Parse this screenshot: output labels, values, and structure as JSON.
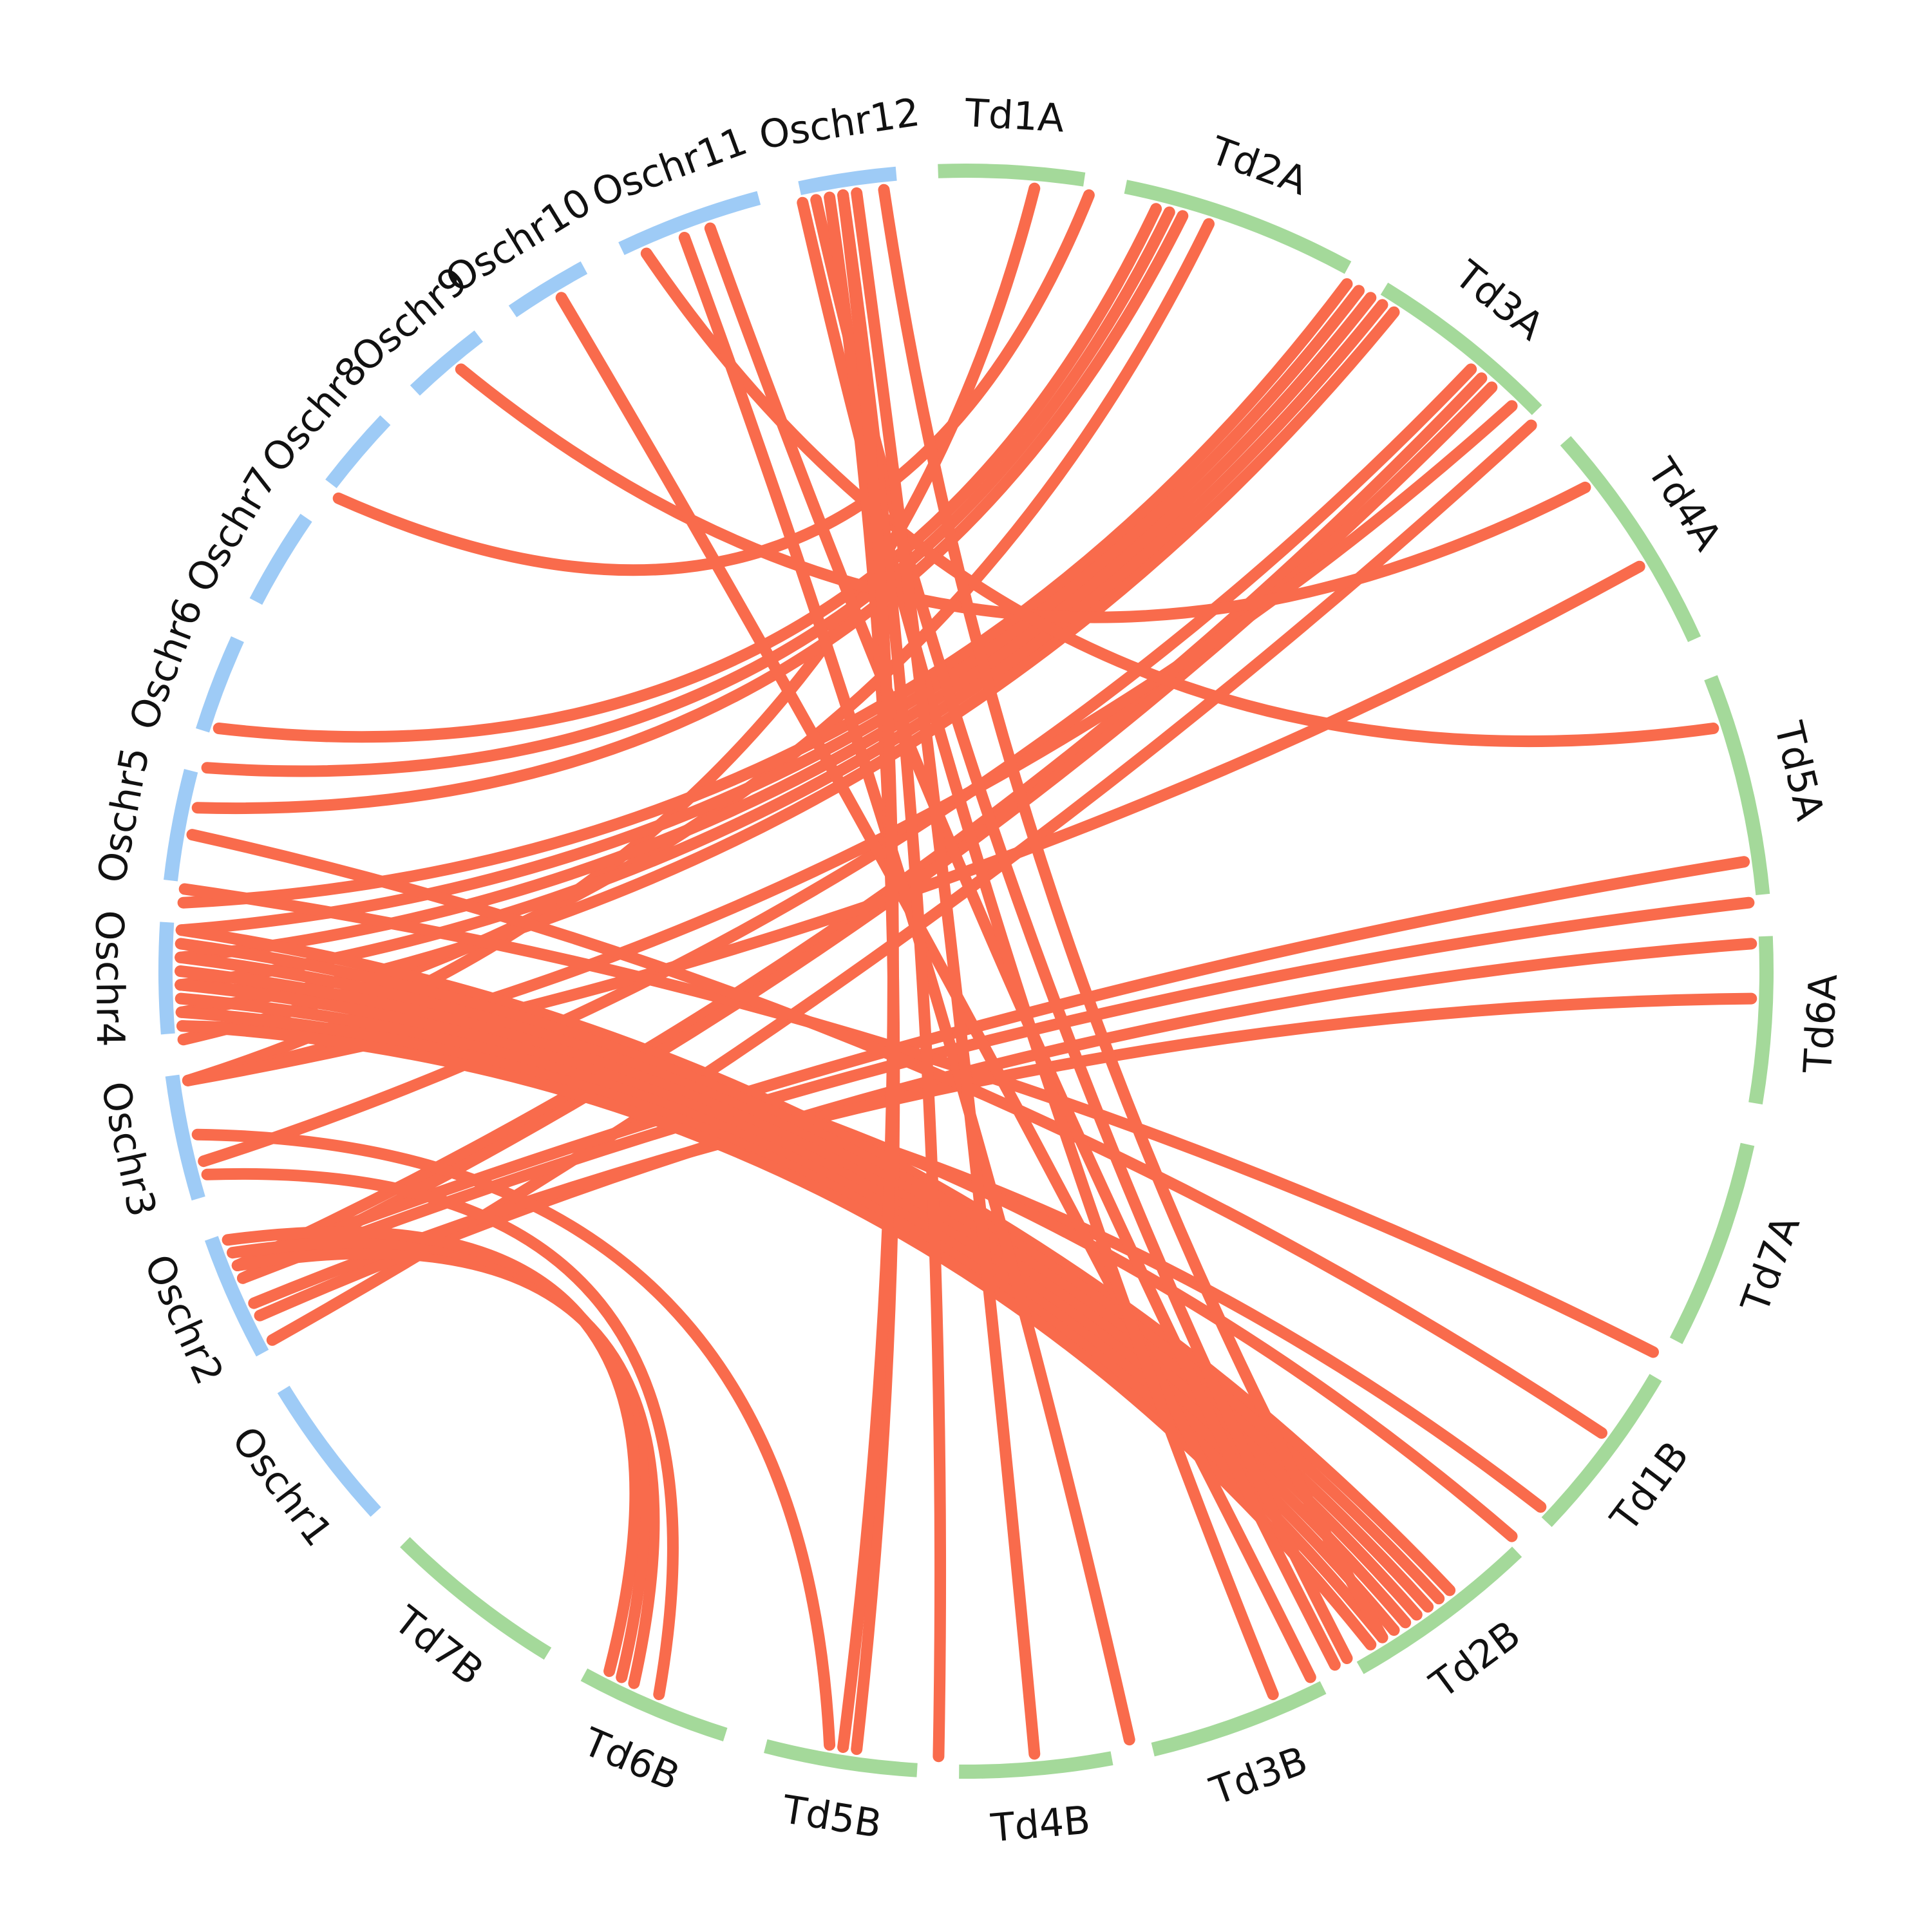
{
  "colors": {
    "rice": "#9ecbf6",
    "wheat": "#a4d99a",
    "link": "#f96b4c",
    "text": "#111111"
  },
  "chromosomes": [
    {
      "id": "Td1A",
      "label": "Td1A",
      "group": "wheat",
      "start": 358.0,
      "end": 8.5
    },
    {
      "id": "Td2A",
      "label": "Td2A",
      "group": "wheat",
      "start": 11.5,
      "end": 28.5
    },
    {
      "id": "Td3A",
      "label": "Td3A",
      "group": "wheat",
      "start": 31.5,
      "end": 45.5
    },
    {
      "id": "Td4A",
      "label": "Td4A",
      "group": "wheat",
      "start": 48.5,
      "end": 65.5
    },
    {
      "id": "Td5A",
      "label": "Td5A",
      "group": "wheat",
      "start": 68.5,
      "end": 84.5
    },
    {
      "id": "Td6A",
      "label": "Td6A",
      "group": "wheat",
      "start": 87.5,
      "end": 99.5
    },
    {
      "id": "Td7A",
      "label": "Td7A",
      "group": "wheat",
      "start": 102.5,
      "end": 117.5
    },
    {
      "id": "Td1B",
      "label": "Td1B",
      "group": "wheat",
      "start": 120.5,
      "end": 133.5
    },
    {
      "id": "Td2B",
      "label": "Td2B",
      "group": "wheat",
      "start": 136.5,
      "end": 150.5
    },
    {
      "id": "Td3B",
      "label": "Td3B",
      "group": "wheat",
      "start": 153.5,
      "end": 166.5
    },
    {
      "id": "Td4B",
      "label": "Td4B",
      "group": "wheat",
      "start": 169.5,
      "end": 180.5
    },
    {
      "id": "Td5B",
      "label": "Td5B",
      "group": "wheat",
      "start": 183.5,
      "end": 194.5
    },
    {
      "id": "Td6B",
      "label": "Td6B",
      "group": "wheat",
      "start": 197.5,
      "end": 208.5
    },
    {
      "id": "Td7B",
      "label": "Td7B",
      "group": "wheat",
      "start": 211.5,
      "end": 224.5
    },
    {
      "id": "Oschr1",
      "label": "Oschr1",
      "group": "rice",
      "start": 227.5,
      "end": 238.5
    },
    {
      "id": "Oschr2",
      "label": "Oschr2",
      "group": "rice",
      "start": 241.5,
      "end": 250.5
    },
    {
      "id": "Oschr3",
      "label": "Oschr3",
      "group": "rice",
      "start": 253.5,
      "end": 262.5
    },
    {
      "id": "Oschr4",
      "label": "Oschr4",
      "group": "rice",
      "start": 265.5,
      "end": 273.5
    },
    {
      "id": "Oschr5",
      "label": "Oschr5",
      "group": "rice",
      "start": 276.5,
      "end": 284.5
    },
    {
      "id": "Oschr6",
      "label": "Oschr6",
      "group": "rice",
      "start": 287.5,
      "end": 294.5
    },
    {
      "id": "Oschr7",
      "label": "Oschr7",
      "group": "rice",
      "start": 297.5,
      "end": 304.5
    },
    {
      "id": "Oschr8",
      "label": "Oschr8",
      "group": "rice",
      "start": 307.5,
      "end": 313.5
    },
    {
      "id": "Oschr9",
      "label": "Oschr9",
      "group": "rice",
      "start": 316.5,
      "end": 322.5
    },
    {
      "id": "Oschr10",
      "label": "Oschr10",
      "group": "rice",
      "start": 325.5,
      "end": 331.5
    },
    {
      "id": "Oschr11",
      "label": "Oschr11",
      "group": "rice",
      "start": 334.5,
      "end": 345.0
    },
    {
      "id": "Oschr12",
      "label": "Oschr12",
      "group": "rice",
      "start": 348.0,
      "end": 355.0
    }
  ],
  "links": [
    [
      5,
      262
    ],
    [
      9,
      307
    ],
    [
      14,
      288
    ],
    [
      15,
      285
    ],
    [
      16,
      282
    ],
    [
      18,
      265
    ],
    [
      29,
      275
    ],
    [
      30,
      273
    ],
    [
      31,
      271
    ],
    [
      32,
      269
    ],
    [
      33,
      267
    ],
    [
      40,
      256
    ],
    [
      41,
      248
    ],
    [
      42,
      247
    ],
    [
      44,
      262
    ],
    [
      46,
      242
    ],
    [
      52,
      320
    ],
    [
      59,
      262
    ],
    [
      72,
      336
    ],
    [
      82,
      248
    ],
    [
      85,
      247
    ],
    [
      88,
      244
    ],
    [
      92,
      245
    ],
    [
      119,
      276
    ],
    [
      126,
      280
    ],
    [
      133,
      266
    ],
    [
      136,
      269
    ],
    [
      142,
      273
    ],
    [
      143,
      272
    ],
    [
      144,
      271
    ],
    [
      145,
      270
    ],
    [
      146,
      269
    ],
    [
      147,
      268
    ],
    [
      148,
      267
    ],
    [
      149,
      266
    ],
    [
      151,
      349
    ],
    [
      152,
      341
    ],
    [
      154,
      329
    ],
    [
      157,
      348
    ],
    [
      168,
      339
    ],
    [
      182,
      351
    ],
    [
      188,
      350
    ],
    [
      189,
      351
    ],
    [
      203,
      255
    ],
    [
      205,
      248
    ],
    [
      206,
      249
    ],
    [
      207,
      250
    ],
    [
      190,
      258
    ],
    [
      148,
      354
    ],
    [
      175,
      352
    ]
  ]
}
